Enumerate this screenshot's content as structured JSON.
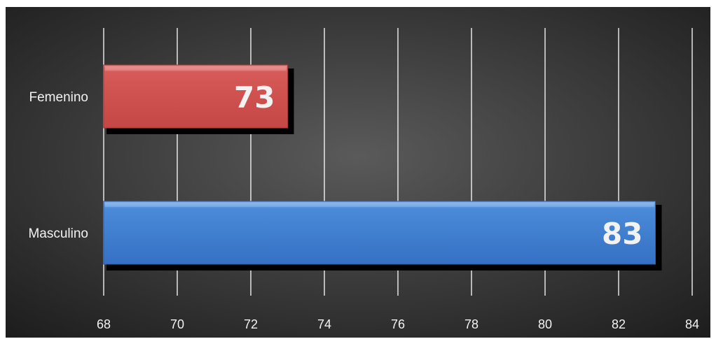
{
  "chart_data": {
    "type": "bar",
    "orientation": "horizontal",
    "categories": [
      "Femenino",
      "Masculino"
    ],
    "values": [
      73,
      83
    ],
    "data_labels": [
      "73",
      "83"
    ],
    "xlim": [
      68,
      84
    ],
    "x_ticks": [
      68,
      70,
      72,
      74,
      76,
      78,
      80,
      82,
      84
    ],
    "x_tick_labels": [
      "68",
      "70",
      "72",
      "74",
      "76",
      "78",
      "80",
      "82",
      "84"
    ],
    "title": "",
    "xlabel": "",
    "ylabel": "",
    "grid": "vertical",
    "legend": "none",
    "bar_colors": [
      "#d0504f",
      "#3f7fd3"
    ],
    "background": "#3a3a3a"
  }
}
